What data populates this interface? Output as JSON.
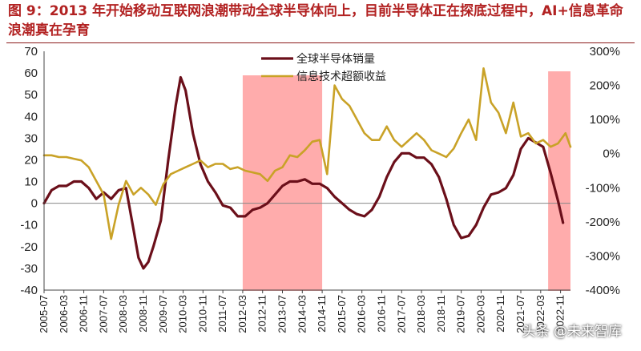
{
  "figure": {
    "title": "图 9：2013 年开始移动互联网浪潮带动全球半导体向上，目前半导体正在探底过程中，AI+信息革命浪潮真在孕育",
    "watermark": "头条 @未来智库"
  },
  "colors": {
    "title": "#b22222",
    "series_sales": "#6b0f1a",
    "series_excess": "#c9a227",
    "highlight": "#ff9e9e"
  },
  "chart_data": {
    "type": "line",
    "title": "",
    "xlabel": "",
    "ylabel": "",
    "y_left_lim": [
      -40,
      70
    ],
    "y_left_ticks": [
      -40,
      -30,
      -20,
      -10,
      0,
      10,
      20,
      30,
      40,
      50,
      60,
      70
    ],
    "y_right_lim": [
      "-400%",
      "300%"
    ],
    "y_right_ticks": [
      "-400%",
      "-300%",
      "-200%",
      "-100%",
      "0%",
      "100%",
      "200%",
      "300%"
    ],
    "x_ticks": [
      "2005-07",
      "2006-03",
      "2006-11",
      "2007-07",
      "2008-03",
      "2008-11",
      "2009-07",
      "2010-03",
      "2010-11",
      "2011-07",
      "2012-03",
      "2012-11",
      "2013-07",
      "2014-03",
      "2014-11",
      "2015-07",
      "2016-03",
      "2016-11",
      "2017-07",
      "2018-03",
      "2018-11",
      "2019-07",
      "2020-03",
      "2020-11",
      "2021-07",
      "2022-03",
      "2022-11"
    ],
    "legend": {
      "position": "top-center"
    },
    "highlight_periods": [
      {
        "from": "2012-03",
        "to": "2014-11"
      },
      {
        "from": "2022-06",
        "to": "2023-03"
      }
    ],
    "series": [
      {
        "name": "全球半导体销量",
        "axis": "left",
        "x": [
          "2005-07",
          "2005-10",
          "2006-01",
          "2006-04",
          "2006-07",
          "2006-10",
          "2007-01",
          "2007-04",
          "2007-07",
          "2007-10",
          "2008-01",
          "2008-04",
          "2008-07",
          "2008-09",
          "2008-11",
          "2009-01",
          "2009-03",
          "2009-06",
          "2009-09",
          "2009-12",
          "2010-02",
          "2010-04",
          "2010-07",
          "2010-10",
          "2011-01",
          "2011-04",
          "2011-07",
          "2011-10",
          "2012-01",
          "2012-04",
          "2012-07",
          "2012-10",
          "2013-01",
          "2013-04",
          "2013-07",
          "2013-10",
          "2014-01",
          "2014-04",
          "2014-07",
          "2014-10",
          "2015-01",
          "2015-04",
          "2015-07",
          "2015-10",
          "2016-01",
          "2016-04",
          "2016-07",
          "2016-10",
          "2017-01",
          "2017-04",
          "2017-07",
          "2017-10",
          "2018-01",
          "2018-04",
          "2018-07",
          "2018-10",
          "2019-01",
          "2019-04",
          "2019-07",
          "2019-10",
          "2020-01",
          "2020-04",
          "2020-07",
          "2020-10",
          "2021-01",
          "2021-04",
          "2021-07",
          "2021-10",
          "2022-01",
          "2022-04",
          "2022-07",
          "2022-10",
          "2022-12"
        ],
        "values": [
          0,
          6,
          8,
          8,
          10,
          10,
          7,
          2,
          5,
          2,
          6,
          7,
          -12,
          -25,
          -30,
          -27,
          -20,
          -8,
          20,
          45,
          58,
          52,
          32,
          18,
          10,
          5,
          -1,
          -2,
          -6,
          -6,
          -3,
          -2,
          0,
          4,
          8,
          10,
          10,
          11,
          9,
          9,
          7,
          3,
          0,
          -3,
          -5,
          -6,
          -3,
          3,
          12,
          19,
          23,
          23,
          21,
          21,
          18,
          12,
          2,
          -10,
          -16,
          -15,
          -10,
          -2,
          4,
          5,
          7,
          13,
          25,
          30,
          28,
          26,
          14,
          1,
          -9
        ]
      },
      {
        "name": "信息技术超额收益",
        "axis": "right",
        "x": [
          "2005-07",
          "2005-10",
          "2006-01",
          "2006-04",
          "2006-07",
          "2006-10",
          "2007-01",
          "2007-04",
          "2007-07",
          "2007-10",
          "2008-01",
          "2008-04",
          "2008-07",
          "2008-10",
          "2009-01",
          "2009-04",
          "2009-07",
          "2009-10",
          "2010-01",
          "2010-04",
          "2010-07",
          "2010-10",
          "2011-01",
          "2011-04",
          "2011-07",
          "2011-10",
          "2012-01",
          "2012-04",
          "2012-07",
          "2012-10",
          "2013-01",
          "2013-04",
          "2013-07",
          "2013-10",
          "2014-01",
          "2014-04",
          "2014-07",
          "2014-10",
          "2015-01",
          "2015-04",
          "2015-07",
          "2015-10",
          "2016-01",
          "2016-04",
          "2016-07",
          "2016-10",
          "2017-01",
          "2017-04",
          "2017-07",
          "2017-10",
          "2018-01",
          "2018-04",
          "2018-07",
          "2018-10",
          "2019-01",
          "2019-04",
          "2019-07",
          "2019-10",
          "2020-01",
          "2020-04",
          "2020-07",
          "2020-10",
          "2021-01",
          "2021-04",
          "2021-07",
          "2021-10",
          "2022-01",
          "2022-04",
          "2022-07",
          "2022-10",
          "2023-01",
          "2023-03"
        ],
        "values": [
          -5,
          -5,
          -10,
          -10,
          -15,
          -20,
          -40,
          -80,
          -120,
          -250,
          -150,
          -80,
          -120,
          -100,
          -120,
          -150,
          -90,
          -60,
          -50,
          -40,
          -30,
          -20,
          -40,
          -30,
          -30,
          -45,
          -40,
          -50,
          -55,
          -60,
          -80,
          -50,
          -40,
          -5,
          -10,
          10,
          35,
          40,
          -60,
          200,
          160,
          140,
          100,
          60,
          40,
          40,
          80,
          40,
          20,
          40,
          60,
          40,
          10,
          0,
          -10,
          15,
          60,
          100,
          40,
          250,
          150,
          120,
          60,
          150,
          50,
          60,
          30,
          40,
          20,
          30,
          60,
          20
        ]
      }
    ]
  }
}
